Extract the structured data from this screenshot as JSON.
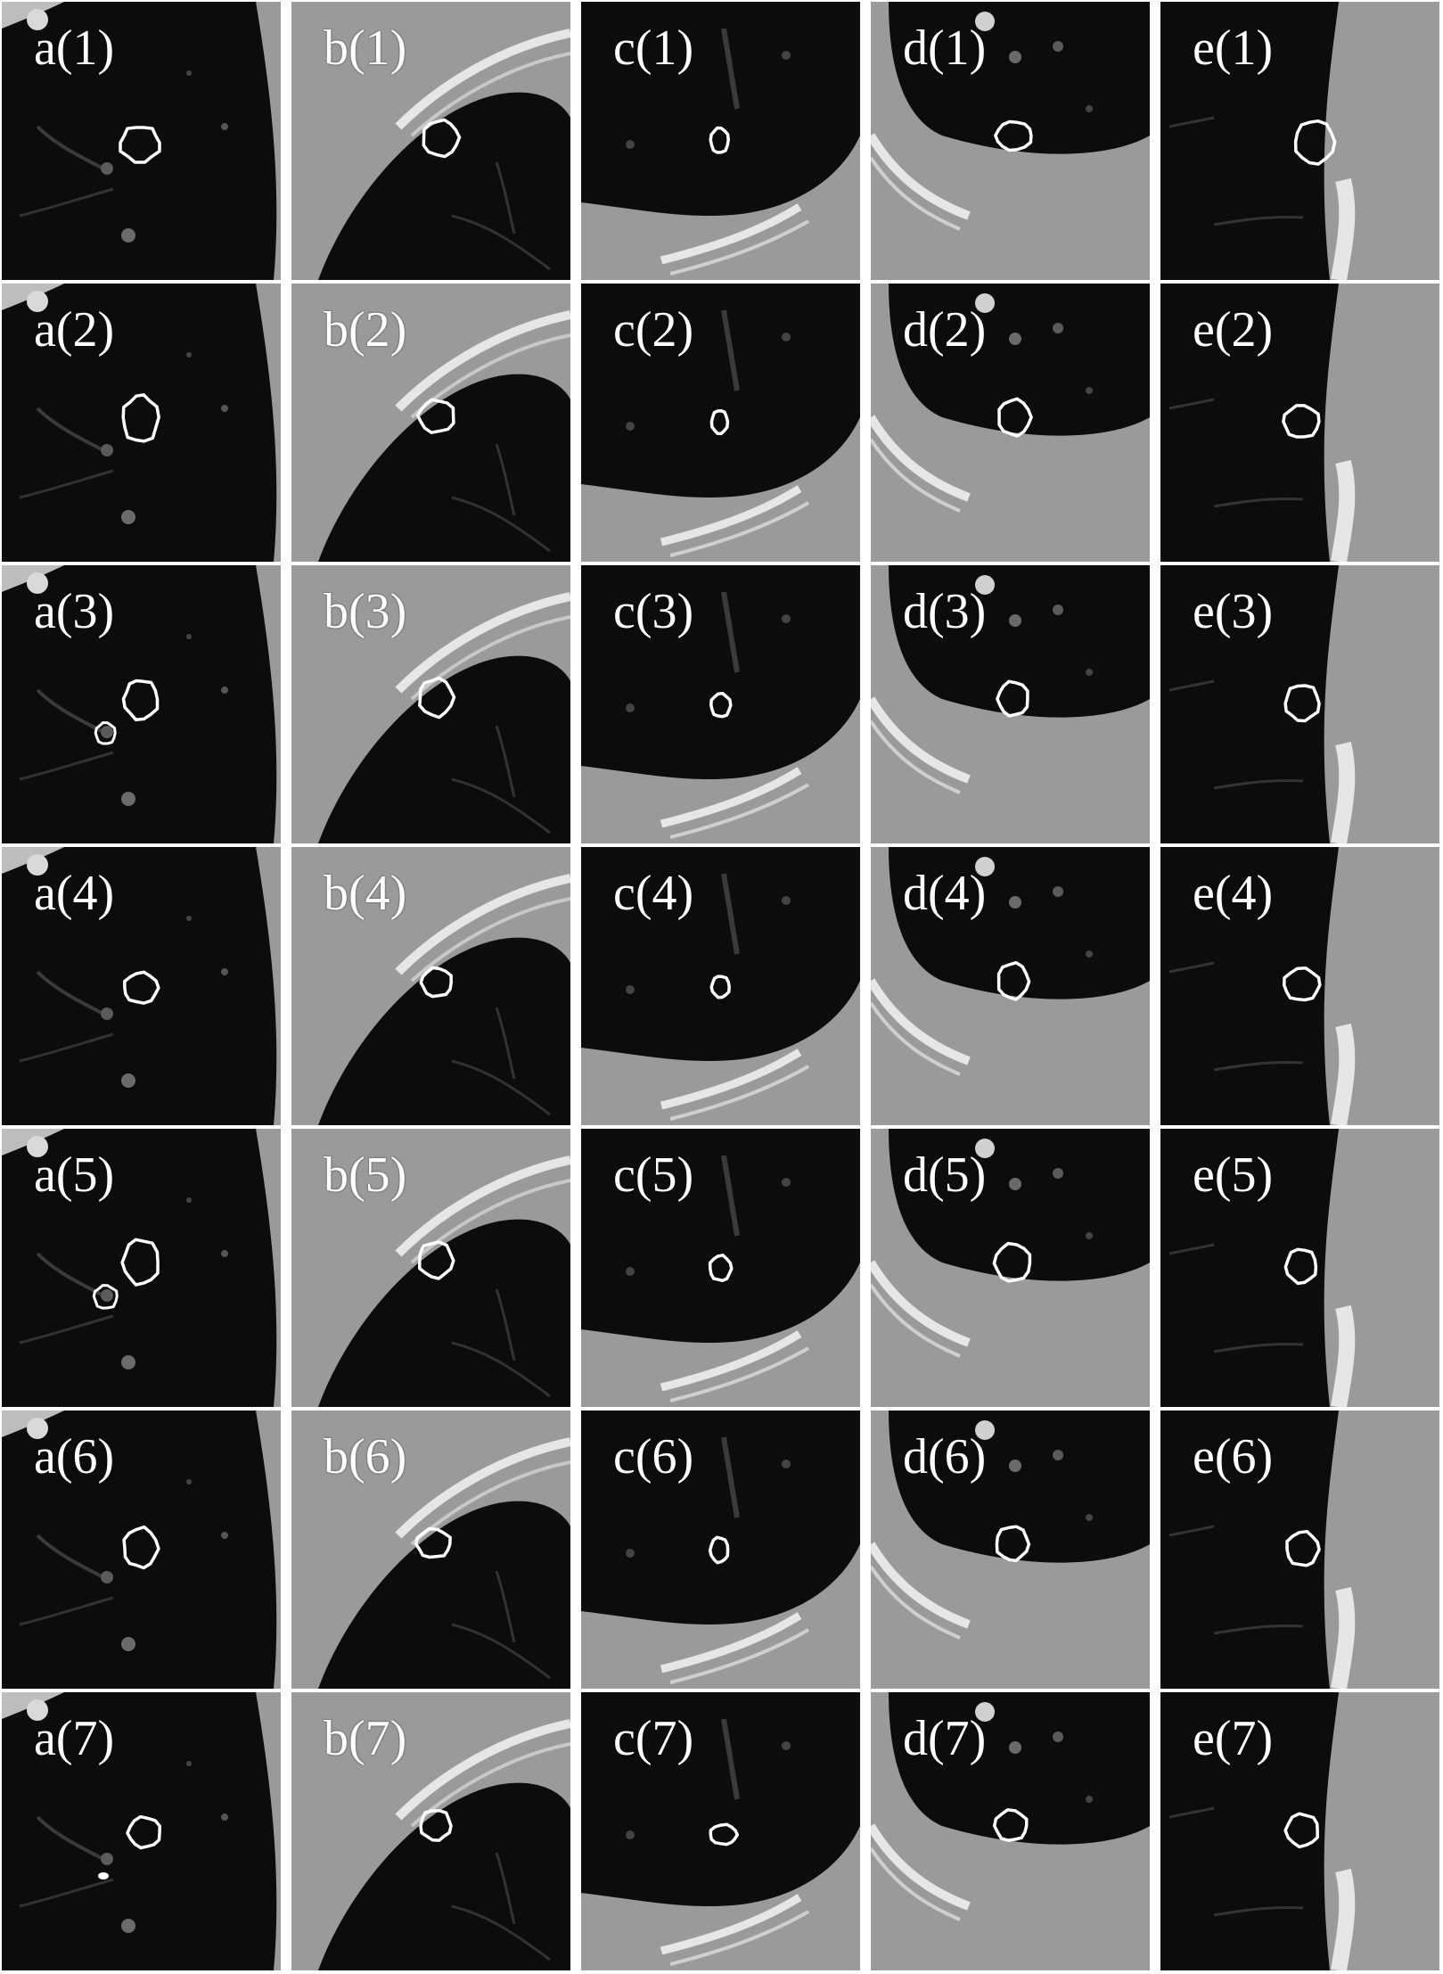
{
  "figure": {
    "columns": [
      "a",
      "b",
      "c",
      "d",
      "e"
    ],
    "rows": 7,
    "labels": [
      [
        "a(1)",
        "b(1)",
        "c(1)",
        "d(1)",
        "e(1)"
      ],
      [
        "a(2)",
        "b(2)",
        "c(2)",
        "d(2)",
        "e(2)"
      ],
      [
        "a(3)",
        "b(3)",
        "c(3)",
        "d(3)",
        "e(3)"
      ],
      [
        "a(4)",
        "b(4)",
        "c(4)",
        "d(4)",
        "e(4)"
      ],
      [
        "a(5)",
        "b(5)",
        "c(5)",
        "d(5)",
        "e(5)"
      ],
      [
        "a(6)",
        "b(6)",
        "c(6)",
        "d(6)",
        "e(6)"
      ],
      [
        "a(7)",
        "b(7)",
        "c(7)",
        "d(7)",
        "e(7)"
      ]
    ],
    "colors": {
      "background": "#ffffff",
      "lung": "#0c0c0c",
      "tissue": "#9a9a9a",
      "bone": "#e6e6e6",
      "contour": "#ffffff",
      "label": "#ffffff"
    }
  }
}
